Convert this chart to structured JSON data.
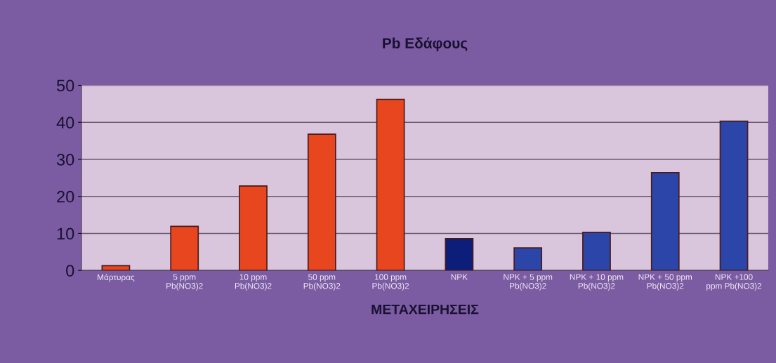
{
  "chart_data": {
    "type": "bar",
    "title": "Pb Εδάφους",
    "xlabel": "ΜΕΤΑΧΕΙΡΗΣΕΙΣ",
    "categories": [
      "Μάρτυρας",
      "5 ppm\nPb(NO3)2",
      "10 ppm\nPb(NO3)2",
      "50 ppm\nPb(NO3)2",
      "100 ppm\nPb(NO3)2",
      "NPK",
      "NPK + 5 ppm\nPb(NO3)2",
      "NPK + 10 ppm\nPb(NO3)2",
      "NPK + 50 ppm\nPb(NO3)2",
      "NPK +100\nppm Pb(NO3)2"
    ],
    "values": [
      1.3,
      11.9,
      22.8,
      36.8,
      46.2,
      8.6,
      6.1,
      10.3,
      26.4,
      40.3
    ],
    "colors": [
      "#e8461e",
      "#e8461e",
      "#e8461e",
      "#e8461e",
      "#e8461e",
      "#0d1e7a",
      "#2b45a8",
      "#2b45a8",
      "#2b45a8",
      "#2b45a8"
    ],
    "ylim": [
      0,
      50
    ],
    "yticks": [
      0,
      10,
      20,
      30,
      40,
      50
    ],
    "grid": "y"
  }
}
